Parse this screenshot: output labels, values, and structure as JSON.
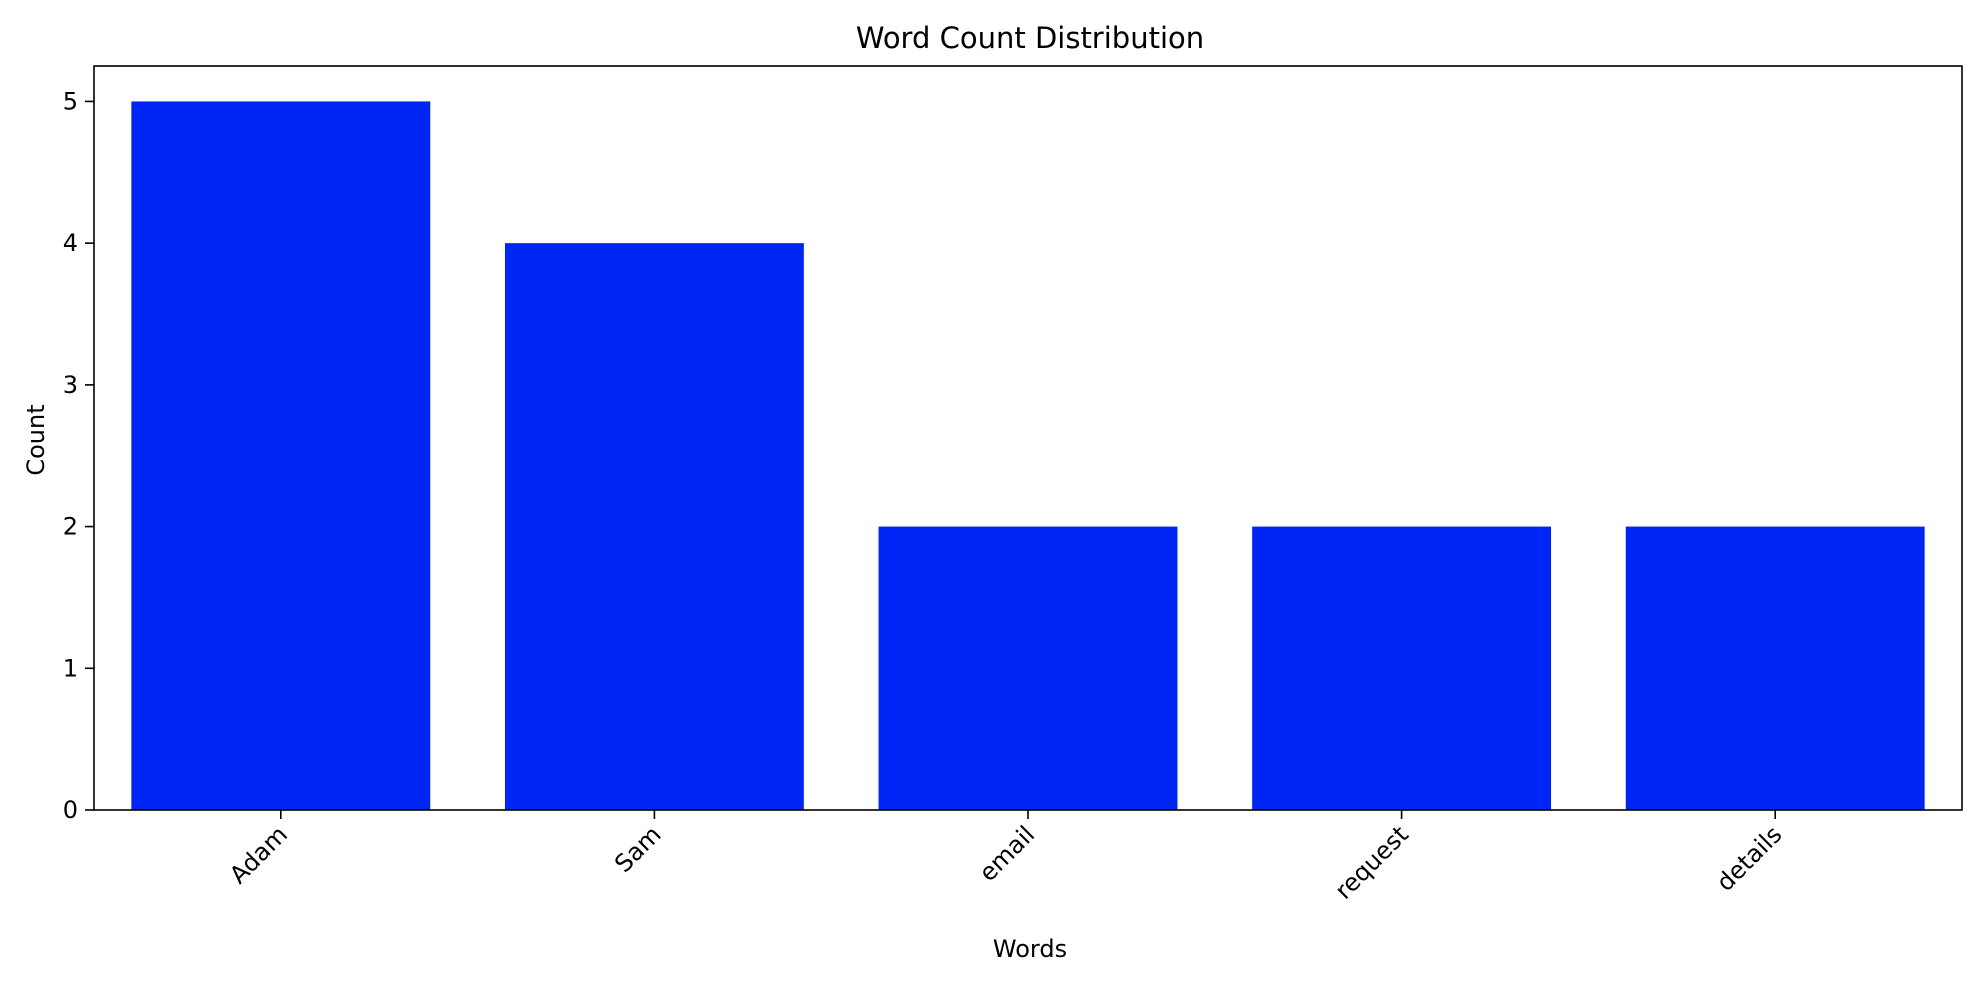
{
  "chart_data": {
    "type": "bar",
    "title": "Word Count Distribution",
    "xlabel": "Words",
    "ylabel": "Count",
    "categories": [
      "Adam",
      "Sam",
      "email",
      "request",
      "details"
    ],
    "values": [
      5,
      4,
      2,
      2,
      2
    ],
    "ylim": [
      0,
      5.25
    ],
    "yticks": [
      0,
      1,
      2,
      3,
      4,
      5
    ],
    "grid": false,
    "bar_color": "#0026f5"
  }
}
